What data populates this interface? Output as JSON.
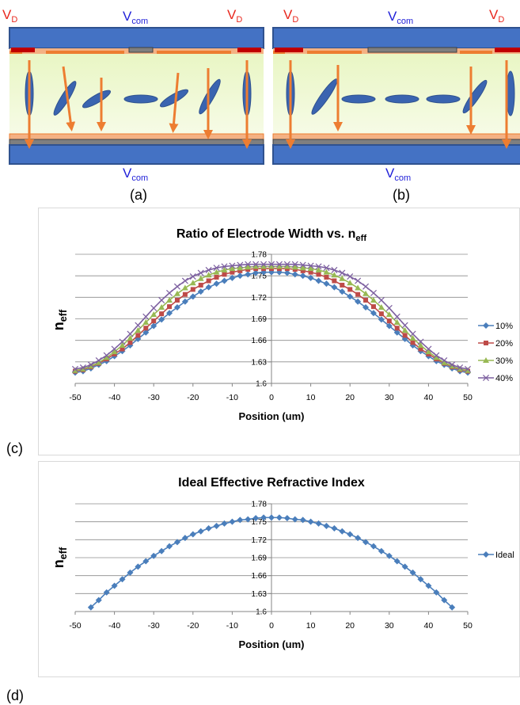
{
  "diagrams": [
    {
      "caption": "(a)",
      "labels": [
        {
          "main": "V",
          "sub": "D"
        },
        {
          "main": "V",
          "sub": "com"
        },
        {
          "main": "V",
          "sub": "D"
        },
        {
          "main": "V",
          "sub": "com"
        }
      ]
    },
    {
      "caption": "(b)",
      "labels": [
        {
          "main": "V",
          "sub": "D"
        },
        {
          "main": "V",
          "sub": "com"
        },
        {
          "main": "V",
          "sub": "D"
        },
        {
          "main": "V",
          "sub": "com"
        }
      ]
    }
  ],
  "panel_labels": [
    "(c)",
    "(d)"
  ],
  "chart_data": [
    {
      "type": "line",
      "title": "Ratio of Electrode Width vs. n",
      "title_sub": "eff",
      "xlabel": "Position (um)",
      "ylabel": "n",
      "ylabel_sub": "eff",
      "x": [
        -50,
        -48,
        -46,
        -44,
        -42,
        -40,
        -38,
        -36,
        -34,
        -32,
        -30,
        -28,
        -26,
        -24,
        -22,
        -20,
        -18,
        -16,
        -14,
        -12,
        -10,
        -8,
        -6,
        -4,
        -2,
        0,
        2,
        4,
        6,
        8,
        10,
        12,
        14,
        16,
        18,
        20,
        22,
        24,
        26,
        28,
        30,
        32,
        34,
        36,
        38,
        40,
        42,
        44,
        46,
        48,
        50
      ],
      "series": [
        {
          "name": "10%",
          "color": "#4a7ebb",
          "marker": "diamond",
          "values": [
            1.615,
            1.617,
            1.621,
            1.626,
            1.631,
            1.638,
            1.645,
            1.653,
            1.662,
            1.671,
            1.68,
            1.689,
            1.698,
            1.706,
            1.714,
            1.721,
            1.728,
            1.734,
            1.739,
            1.743,
            1.747,
            1.75,
            1.752,
            1.754,
            1.755,
            1.755,
            1.755,
            1.754,
            1.752,
            1.75,
            1.747,
            1.743,
            1.739,
            1.734,
            1.728,
            1.721,
            1.714,
            1.706,
            1.698,
            1.689,
            1.68,
            1.671,
            1.662,
            1.653,
            1.645,
            1.638,
            1.631,
            1.626,
            1.621,
            1.617,
            1.615
          ]
        },
        {
          "name": "20%",
          "color": "#be4b48",
          "marker": "square",
          "values": [
            1.617,
            1.619,
            1.623,
            1.628,
            1.634,
            1.641,
            1.648,
            1.657,
            1.667,
            1.677,
            1.687,
            1.697,
            1.707,
            1.716,
            1.724,
            1.731,
            1.737,
            1.743,
            1.748,
            1.752,
            1.755,
            1.757,
            1.759,
            1.76,
            1.76,
            1.76,
            1.76,
            1.76,
            1.759,
            1.757,
            1.755,
            1.752,
            1.748,
            1.743,
            1.737,
            1.731,
            1.724,
            1.716,
            1.707,
            1.697,
            1.687,
            1.677,
            1.667,
            1.657,
            1.648,
            1.641,
            1.634,
            1.628,
            1.623,
            1.619,
            1.617
          ]
        },
        {
          "name": "30%",
          "color": "#98b954",
          "marker": "triangle",
          "values": [
            1.618,
            1.62,
            1.624,
            1.629,
            1.636,
            1.644,
            1.653,
            1.663,
            1.674,
            1.685,
            1.696,
            1.706,
            1.716,
            1.725,
            1.733,
            1.74,
            1.746,
            1.751,
            1.755,
            1.758,
            1.76,
            1.761,
            1.762,
            1.763,
            1.763,
            1.763,
            1.763,
            1.763,
            1.762,
            1.761,
            1.76,
            1.758,
            1.755,
            1.751,
            1.746,
            1.74,
            1.733,
            1.725,
            1.716,
            1.706,
            1.696,
            1.685,
            1.674,
            1.663,
            1.653,
            1.644,
            1.636,
            1.629,
            1.624,
            1.62,
            1.618
          ]
        },
        {
          "name": "40%",
          "color": "#7d60a0",
          "marker": "x",
          "values": [
            1.62,
            1.622,
            1.626,
            1.632,
            1.639,
            1.648,
            1.658,
            1.669,
            1.681,
            1.693,
            1.705,
            1.716,
            1.726,
            1.735,
            1.743,
            1.749,
            1.754,
            1.758,
            1.761,
            1.763,
            1.764,
            1.765,
            1.766,
            1.766,
            1.766,
            1.766,
            1.766,
            1.766,
            1.766,
            1.765,
            1.764,
            1.763,
            1.761,
            1.758,
            1.754,
            1.749,
            1.743,
            1.735,
            1.726,
            1.716,
            1.705,
            1.693,
            1.681,
            1.669,
            1.658,
            1.648,
            1.639,
            1.632,
            1.626,
            1.622,
            1.62
          ]
        }
      ],
      "xlim": [
        -50,
        50
      ],
      "xticks": [
        -50,
        -40,
        -30,
        -20,
        -10,
        0,
        10,
        20,
        30,
        40,
        50
      ],
      "ylim": [
        1.6,
        1.78
      ],
      "yticks": [
        1.6,
        1.63,
        1.66,
        1.69,
        1.72,
        1.75,
        1.78
      ],
      "grid": true,
      "legend": "right"
    },
    {
      "type": "line",
      "title": "Ideal Effective Refractive Index",
      "xlabel": "Position (um)",
      "ylabel": "n",
      "ylabel_sub": "eff",
      "x": [
        -46,
        -44,
        -42,
        -40,
        -38,
        -36,
        -34,
        -32,
        -30,
        -28,
        -26,
        -24,
        -22,
        -20,
        -18,
        -16,
        -14,
        -12,
        -10,
        -8,
        -6,
        -4,
        -2,
        0,
        2,
        4,
        6,
        8,
        10,
        12,
        14,
        16,
        18,
        20,
        22,
        24,
        26,
        28,
        30,
        32,
        34,
        36,
        38,
        40,
        42,
        44,
        46
      ],
      "series": [
        {
          "name": "Ideal",
          "color": "#4a7ebb",
          "marker": "diamond",
          "values": [
            1.607,
            1.619,
            1.632,
            1.643,
            1.654,
            1.665,
            1.675,
            1.684,
            1.693,
            1.701,
            1.709,
            1.716,
            1.723,
            1.729,
            1.734,
            1.739,
            1.743,
            1.747,
            1.75,
            1.753,
            1.754,
            1.756,
            1.757,
            1.757,
            1.757,
            1.756,
            1.754,
            1.753,
            1.75,
            1.747,
            1.743,
            1.739,
            1.734,
            1.729,
            1.723,
            1.716,
            1.709,
            1.701,
            1.693,
            1.684,
            1.675,
            1.665,
            1.654,
            1.643,
            1.632,
            1.619,
            1.607
          ]
        }
      ],
      "xlim": [
        -50,
        50
      ],
      "xticks": [
        -50,
        -40,
        -30,
        -20,
        -10,
        0,
        10,
        20,
        30,
        40,
        50
      ],
      "ylim": [
        1.6,
        1.78
      ],
      "yticks": [
        1.6,
        1.63,
        1.66,
        1.69,
        1.72,
        1.75,
        1.78
      ],
      "grid": true,
      "legend": "right"
    }
  ]
}
